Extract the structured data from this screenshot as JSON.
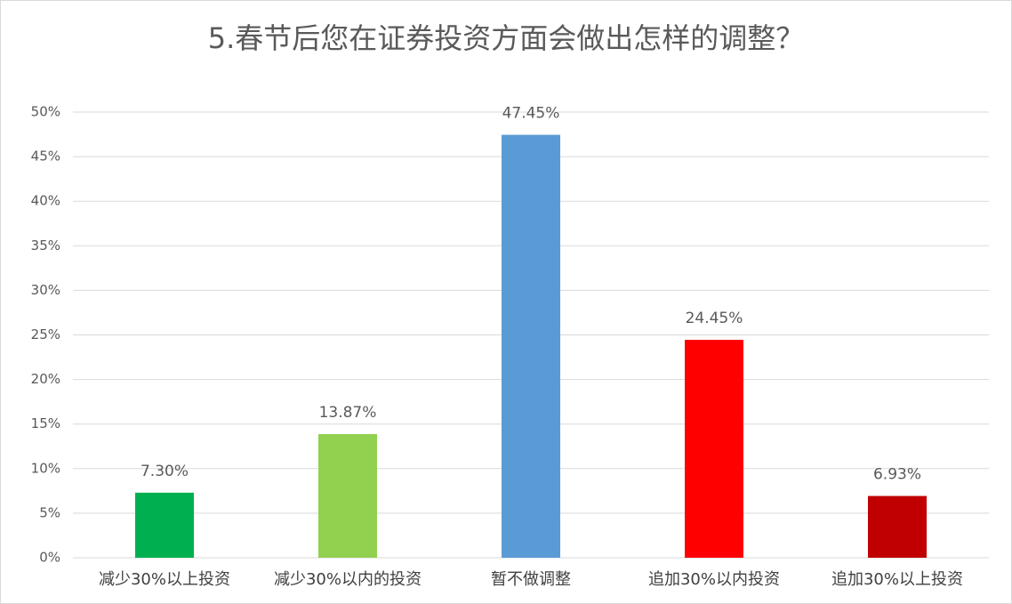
{
  "chart_data": {
    "type": "bar",
    "title": "5.春节后您在证券投资方面会做出怎样的调整？",
    "categories": [
      "减少30%以上投资",
      "减少30%以内的投资",
      "暂不做调整",
      "追加30%以内投资",
      "追加30%以上投资"
    ],
    "values": [
      7.3,
      13.87,
      47.45,
      24.45,
      6.93
    ],
    "value_labels": [
      "7.30%",
      "13.87%",
      "47.45%",
      "24.45%",
      "6.93%"
    ],
    "colors": [
      "#00b050",
      "#92d050",
      "#5b9bd5",
      "#ff0000",
      "#c00000"
    ],
    "ylim": [
      0,
      50
    ],
    "yticks": [
      {
        "value": 0,
        "label": "0%"
      },
      {
        "value": 5,
        "label": "5%"
      },
      {
        "value": 10,
        "label": "10%"
      },
      {
        "value": 15,
        "label": "15%"
      },
      {
        "value": 20,
        "label": "20%"
      },
      {
        "value": 25,
        "label": "25%"
      },
      {
        "value": 30,
        "label": "30%"
      },
      {
        "value": 35,
        "label": "35%"
      },
      {
        "value": 40,
        "label": "40%"
      },
      {
        "value": 45,
        "label": "45%"
      },
      {
        "value": 50,
        "label": "50%"
      }
    ],
    "grid": true
  }
}
